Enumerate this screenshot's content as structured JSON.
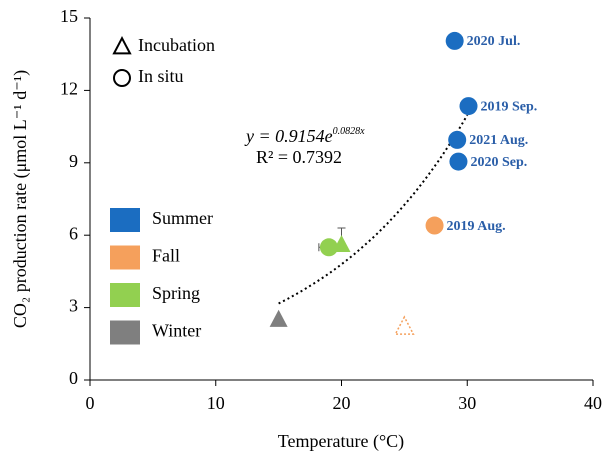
{
  "chart_data": {
    "type": "scatter",
    "x_label": "Temperature (°C)",
    "y_label": "CO₂ production rate (μmol L⁻¹ d⁻¹)",
    "xlim": [
      0,
      40
    ],
    "xticks": [
      0,
      10,
      20,
      30,
      40
    ],
    "ylim": [
      0,
      15
    ],
    "yticks": [
      0,
      3,
      6,
      9,
      12,
      15
    ],
    "seasons": [
      {
        "name": "Summer",
        "color": "#1b6dc1"
      },
      {
        "name": "Fall",
        "color": "#f5a05c"
      },
      {
        "name": "Spring",
        "color": "#92d050"
      },
      {
        "name": "Winter",
        "color": "#7f7f7f"
      }
    ],
    "methods": [
      {
        "name": "Incubation",
        "marker": "triangle"
      },
      {
        "name": "In situ",
        "marker": "circle"
      }
    ],
    "series": [
      {
        "season": "Summer",
        "method": "In situ",
        "x": [
          29,
          30.1,
          29.2,
          29.3
        ],
        "values": [
          14.05,
          11.35,
          9.95,
          9.05
        ],
        "xerr": [
          0.6,
          0.6,
          0.6,
          0.6
        ],
        "point_labels": [
          "2020 Jul.",
          "2019 Sep.",
          "2021 Aug.",
          "2020 Sep."
        ]
      },
      {
        "season": "Fall",
        "method": "In situ",
        "x": [
          27.4
        ],
        "values": [
          6.4
        ],
        "xerr": [
          0.6
        ],
        "point_labels": [
          "2019 Aug."
        ]
      },
      {
        "season": "Fall",
        "method": "Incubation",
        "style": "dotted",
        "x": [
          25
        ],
        "values": [
          2.2
        ]
      },
      {
        "season": "Spring",
        "method": "In situ",
        "x": [
          19
        ],
        "values": [
          5.5
        ],
        "xerr": [
          0.8
        ]
      },
      {
        "season": "Spring",
        "method": "Incubation",
        "x": [
          20
        ],
        "values": [
          5.6
        ],
        "yerr": [
          0.7
        ]
      },
      {
        "season": "Winter",
        "method": "Incubation",
        "x": [
          15
        ],
        "values": [
          2.5
        ]
      }
    ],
    "fit": {
      "equation": "y = 0.9154e",
      "exponent": "0.0828x",
      "r2": "R² = 0.7392",
      "a": 0.9154,
      "b": 0.0828,
      "xrange": [
        15,
        30
      ]
    }
  }
}
